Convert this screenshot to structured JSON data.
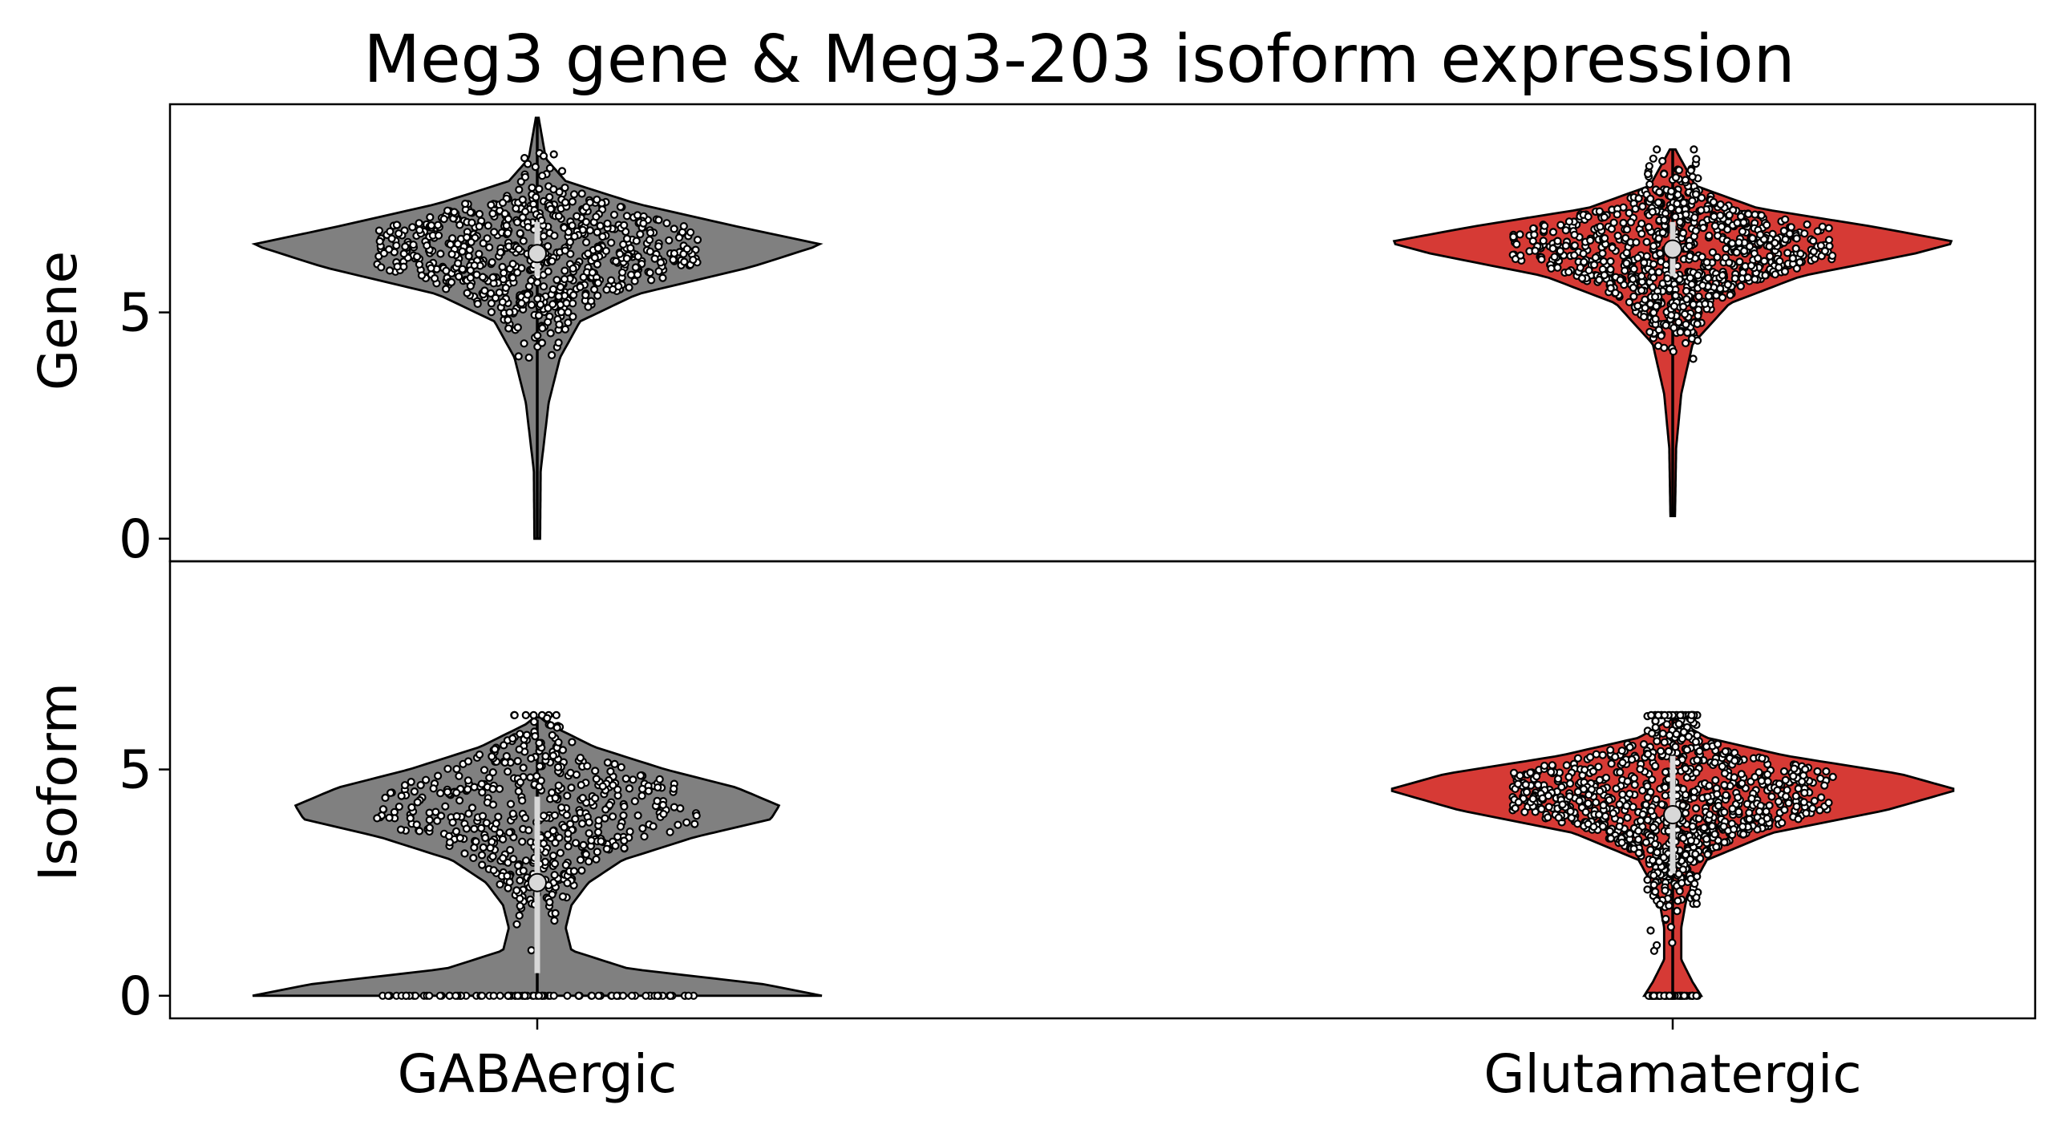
{
  "chart_data": {
    "type": "violin",
    "title": "Meg3 gene & Meg3-203 isoform expression",
    "categories": [
      "GABAergic",
      "Glutamatergic"
    ],
    "colors": {
      "GABAergic": "#808080",
      "Glutamatergic": "#d63a35"
    },
    "grid": false,
    "panels": [
      {
        "ylabel": "Gene",
        "yticks": [
          0,
          5
        ],
        "ylim": [
          -0.5,
          9.6
        ],
        "violins": [
          {
            "category": "GABAergic",
            "median": 6.3,
            "q1": 5.8,
            "q3": 7.0,
            "whisker_low": 0.0,
            "whisker_high": 9.3,
            "density": [
              [
                0.0,
                0.01
              ],
              [
                1.5,
                0.012
              ],
              [
                3.0,
                0.04
              ],
              [
                4.0,
                0.08
              ],
              [
                4.8,
                0.15
              ],
              [
                5.4,
                0.35
              ],
              [
                6.0,
                0.75
              ],
              [
                6.5,
                1.0
              ],
              [
                6.9,
                0.7
              ],
              [
                7.4,
                0.35
              ],
              [
                7.9,
                0.1
              ],
              [
                8.4,
                0.03
              ],
              [
                9.3,
                0.005
              ]
            ],
            "points": {
              "n": 700,
              "mean": 6.3,
              "sd": 0.8,
              "min": 0.0,
              "max": 9.3
            }
          },
          {
            "category": "Glutamatergic",
            "median": 6.4,
            "q1": 5.8,
            "q3": 7.0,
            "whisker_low": 0.5,
            "whisker_high": 8.6,
            "density": [
              [
                0.5,
                0.008
              ],
              [
                2.0,
                0.012
              ],
              [
                3.2,
                0.03
              ],
              [
                4.3,
                0.07
              ],
              [
                5.2,
                0.2
              ],
              [
                5.8,
                0.45
              ],
              [
                6.3,
                0.85
              ],
              [
                6.55,
                1.0
              ],
              [
                6.9,
                0.7
              ],
              [
                7.3,
                0.3
              ],
              [
                7.8,
                0.08
              ],
              [
                8.6,
                0.01
              ]
            ],
            "points": {
              "n": 900,
              "mean": 6.3,
              "sd": 0.85,
              "min": 0.5,
              "max": 8.6
            }
          }
        ]
      },
      {
        "ylabel": "Isoform",
        "yticks": [
          0,
          5
        ],
        "ylim": [
          -0.5,
          9.6
        ],
        "violins": [
          {
            "category": "GABAergic",
            "median": 2.5,
            "q1": 0.5,
            "q3": 4.4,
            "whisker_low": 0.0,
            "whisker_high": 6.1,
            "density": [
              [
                0.0,
                1.0
              ],
              [
                0.25,
                0.8
              ],
              [
                0.6,
                0.32
              ],
              [
                1.0,
                0.12
              ],
              [
                1.5,
                0.1
              ],
              [
                2.0,
                0.12
              ],
              [
                2.5,
                0.18
              ],
              [
                3.0,
                0.3
              ],
              [
                3.5,
                0.55
              ],
              [
                3.9,
                0.82
              ],
              [
                4.2,
                0.85
              ],
              [
                4.6,
                0.7
              ],
              [
                5.0,
                0.45
              ],
              [
                5.5,
                0.2
              ],
              [
                6.0,
                0.04
              ],
              [
                6.15,
                0.01
              ]
            ],
            "points": {
              "n": 600,
              "mean": 4.0,
              "sd": 1.0,
              "min": 0.0,
              "max": 6.2
            }
          },
          {
            "category": "Glutamatergic",
            "median": 4.0,
            "q1": 2.7,
            "q3": 5.3,
            "whisker_low": 0.0,
            "whisker_high": 6.1,
            "density": [
              [
                0.0,
                0.1
              ],
              [
                0.3,
                0.07
              ],
              [
                0.8,
                0.03
              ],
              [
                1.5,
                0.03
              ],
              [
                2.2,
                0.05
              ],
              [
                3.0,
                0.12
              ],
              [
                3.6,
                0.35
              ],
              [
                4.1,
                0.75
              ],
              [
                4.55,
                1.0
              ],
              [
                4.9,
                0.8
              ],
              [
                5.3,
                0.4
              ],
              [
                5.7,
                0.12
              ],
              [
                6.1,
                0.01
              ]
            ],
            "points": {
              "n": 1100,
              "mean": 4.2,
              "sd": 1.0,
              "min": 0.0,
              "max": 6.2
            }
          }
        ]
      }
    ]
  }
}
